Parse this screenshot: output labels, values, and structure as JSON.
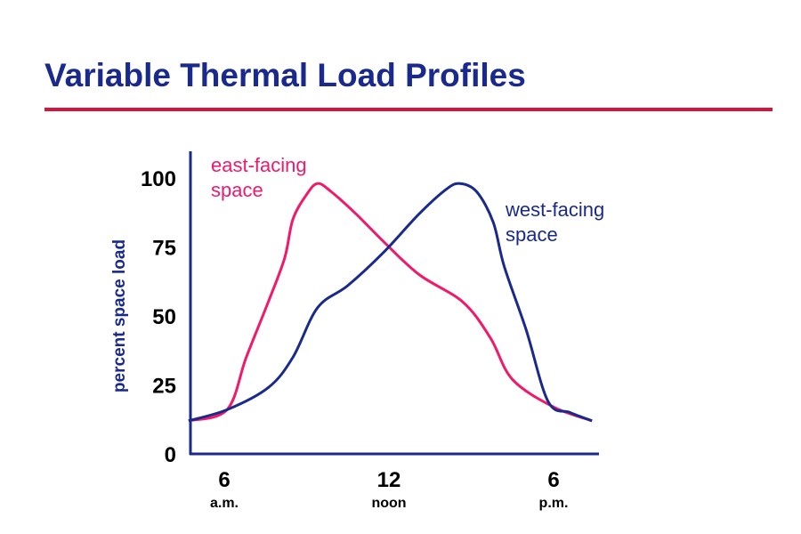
{
  "title": "Variable Thermal Load Profiles",
  "chart_data": {
    "type": "line",
    "title": "Variable Thermal Load Profiles",
    "xlabel": "",
    "ylabel": "percent space load",
    "ylim": [
      0,
      100
    ],
    "xlim": [
      4.7,
      19.6
    ],
    "yticks": [
      "0",
      "25",
      "50",
      "75",
      "100"
    ],
    "xticks": [
      {
        "value": 6,
        "label": "6",
        "sub": "a.m."
      },
      {
        "value": 12,
        "label": "12",
        "sub": "noon"
      },
      {
        "value": 18,
        "label": "6",
        "sub": "p.m."
      }
    ],
    "grid": false,
    "series": [
      {
        "name": "east-facing space",
        "label_lines": [
          "east-facing",
          "space"
        ],
        "color": "#f0196a",
        "x": [
          4.7,
          6.1,
          6.8,
          7.6,
          8.2,
          8.5,
          9.0,
          9.4,
          9.9,
          10.8,
          11.8,
          13.1,
          14.7,
          15.7,
          16.5,
          18.0,
          19.4
        ],
        "y": [
          12,
          16,
          35,
          55,
          71,
          85,
          94,
          98,
          95,
          87,
          77,
          65,
          55,
          42,
          27,
          17,
          12
        ]
      },
      {
        "name": "west-facing space",
        "label_lines": [
          "west-facing",
          "space"
        ],
        "color": "#1a2a8c",
        "x": [
          4.7,
          6.1,
          7.6,
          8.5,
          9.4,
          10.5,
          11.8,
          13.1,
          14.1,
          14.6,
          15.2,
          15.8,
          16.2,
          17.0,
          17.8,
          18.6,
          19.4
        ],
        "y": [
          12,
          16,
          24,
          35,
          53,
          61,
          73,
          87,
          96,
          98,
          95,
          84,
          68,
          45,
          19,
          15,
          12
        ]
      }
    ]
  }
}
